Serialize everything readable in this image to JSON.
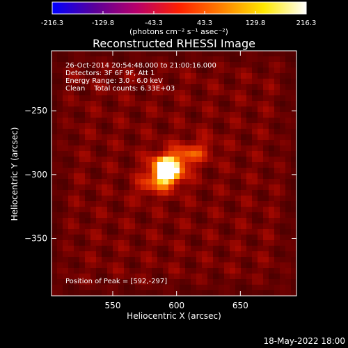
{
  "chart_data": {
    "type": "heatmap",
    "title": "Reconstructed RHESSI Image",
    "xlabel": "Heliocentric X (arcsec)",
    "ylabel": "Heliocentric Y (arcsec)",
    "xlim": [
      502,
      694
    ],
    "ylim": [
      -395,
      -203
    ],
    "x_ticks": [
      550,
      600,
      650
    ],
    "y_ticks": [
      -250,
      -300,
      -350
    ],
    "colorbar": {
      "ticks": [
        "-216.3",
        "-129.8",
        "-43.3",
        "43.3",
        "129.8",
        "216.3"
      ],
      "range": [
        -216.3,
        216.3
      ],
      "unit_label": "(photons cm⁻² s⁻¹ asec⁻²)",
      "palette": [
        "#0000ff",
        "#5a009a",
        "#b8006a",
        "#ff2000",
        "#ff8000",
        "#ffe800",
        "#ffffff"
      ]
    },
    "annotations": {
      "time": "26-Oct-2014 20:54:48.000 to 21:00:16.000",
      "detectors": "Detectors: 3F 6F 9F, Att 1",
      "energy": "Energy Range: 3.0 - 6.0 keV",
      "clean": "Clean    Total counts: 6.33E+03",
      "peak": "Position of Peak = [592,-297]"
    },
    "peak": {
      "x": 592,
      "y": -297
    },
    "sources": [
      {
        "x": 592,
        "y": -297,
        "amplitude": 1.0,
        "sigma": 9
      },
      {
        "x": 608,
        "y": -285,
        "amplitude": 0.35,
        "sigma": 7
      },
      {
        "x": 622,
        "y": -280,
        "amplitude": 0.2,
        "sigma": 7
      },
      {
        "x": 576,
        "y": -310,
        "amplitude": 0.25,
        "sigma": 6
      }
    ],
    "background_level": 0.3,
    "grid": false
  },
  "footer": {
    "date": "18-May-2022 18:00"
  }
}
